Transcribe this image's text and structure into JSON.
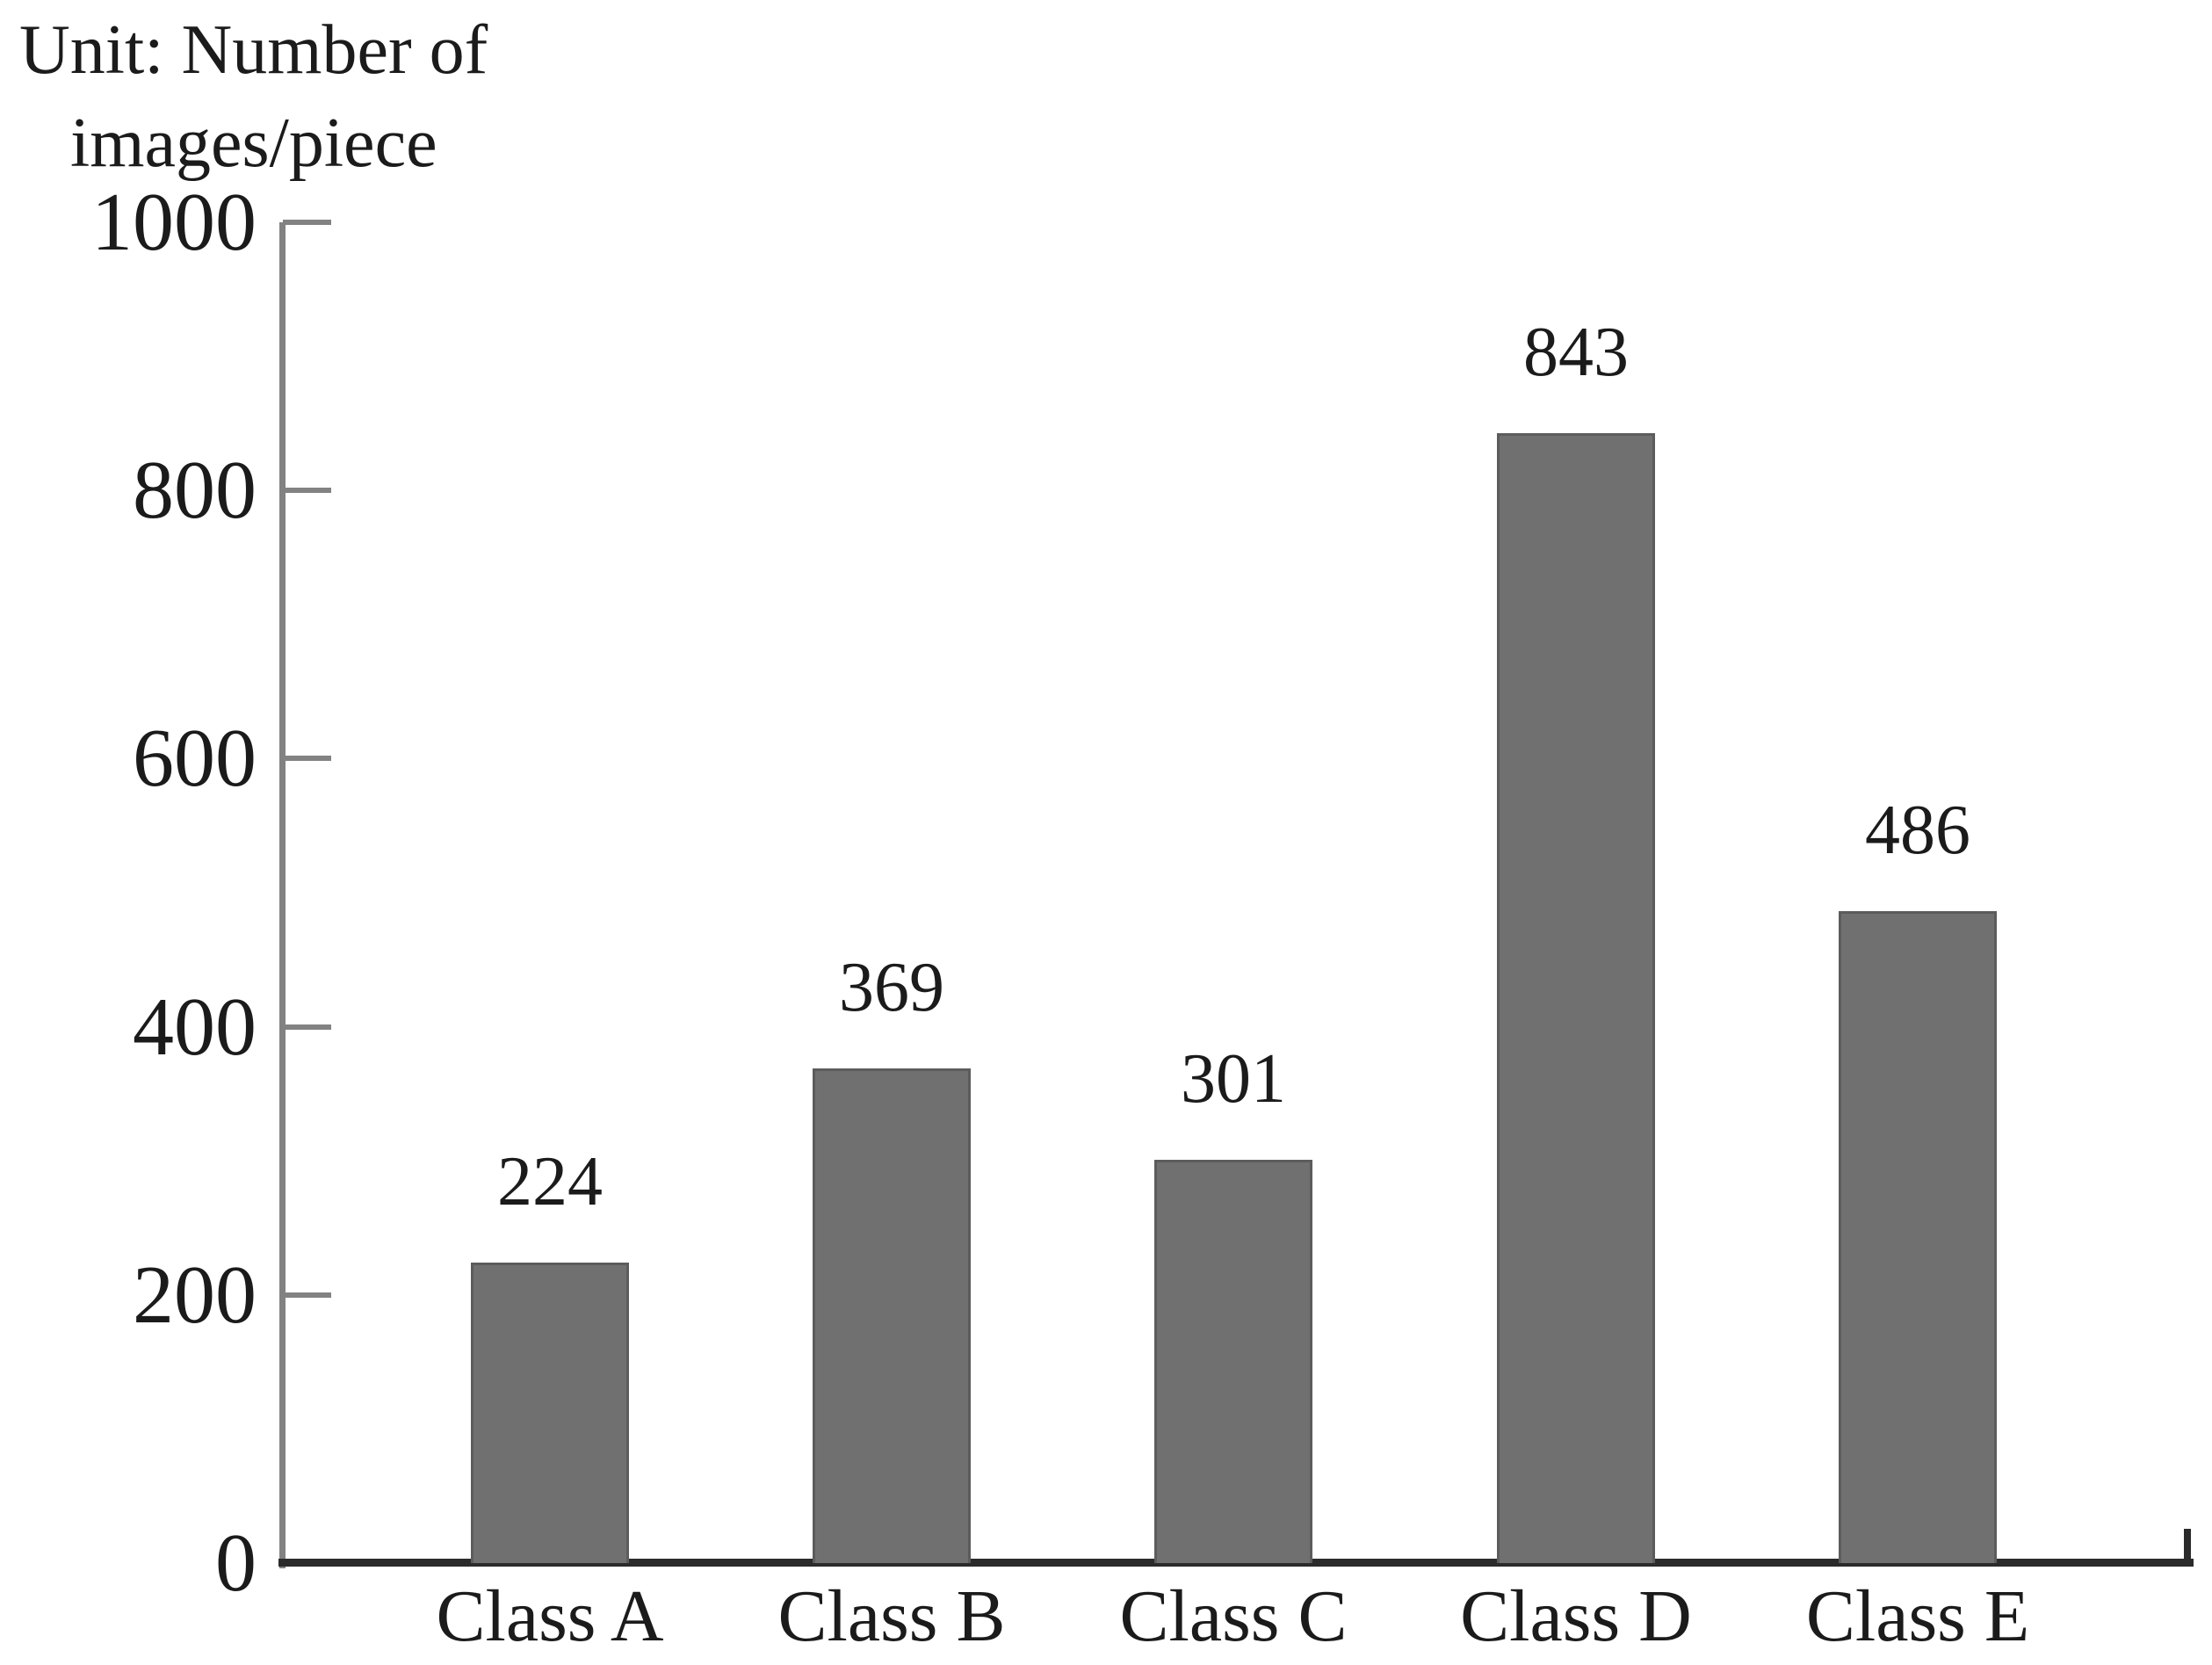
{
  "chart_data": {
    "type": "bar",
    "unit_label_lines": [
      "Unit: Number of",
      "images/piece"
    ],
    "categories": [
      "Class A",
      "Class B",
      "Class C",
      "Class D",
      "Class E"
    ],
    "values": [
      224,
      369,
      301,
      843,
      486
    ],
    "data_labels": [
      "224",
      "369",
      "301",
      "843",
      "486"
    ],
    "ylim": [
      0,
      1000
    ],
    "yticks": [
      0,
      200,
      400,
      600,
      800,
      1000
    ],
    "ytick_labels": [
      "0",
      "200",
      "400",
      "600",
      "800",
      "1000"
    ],
    "grid": "off",
    "legend": "none",
    "colors": {
      "background": "#ffffff",
      "text": "#1b1b1b",
      "bar_fill": "#707070",
      "bar_edge": "#5c5c5c",
      "x_axis": "#2b2b2b",
      "y_axis": "#828282"
    }
  }
}
